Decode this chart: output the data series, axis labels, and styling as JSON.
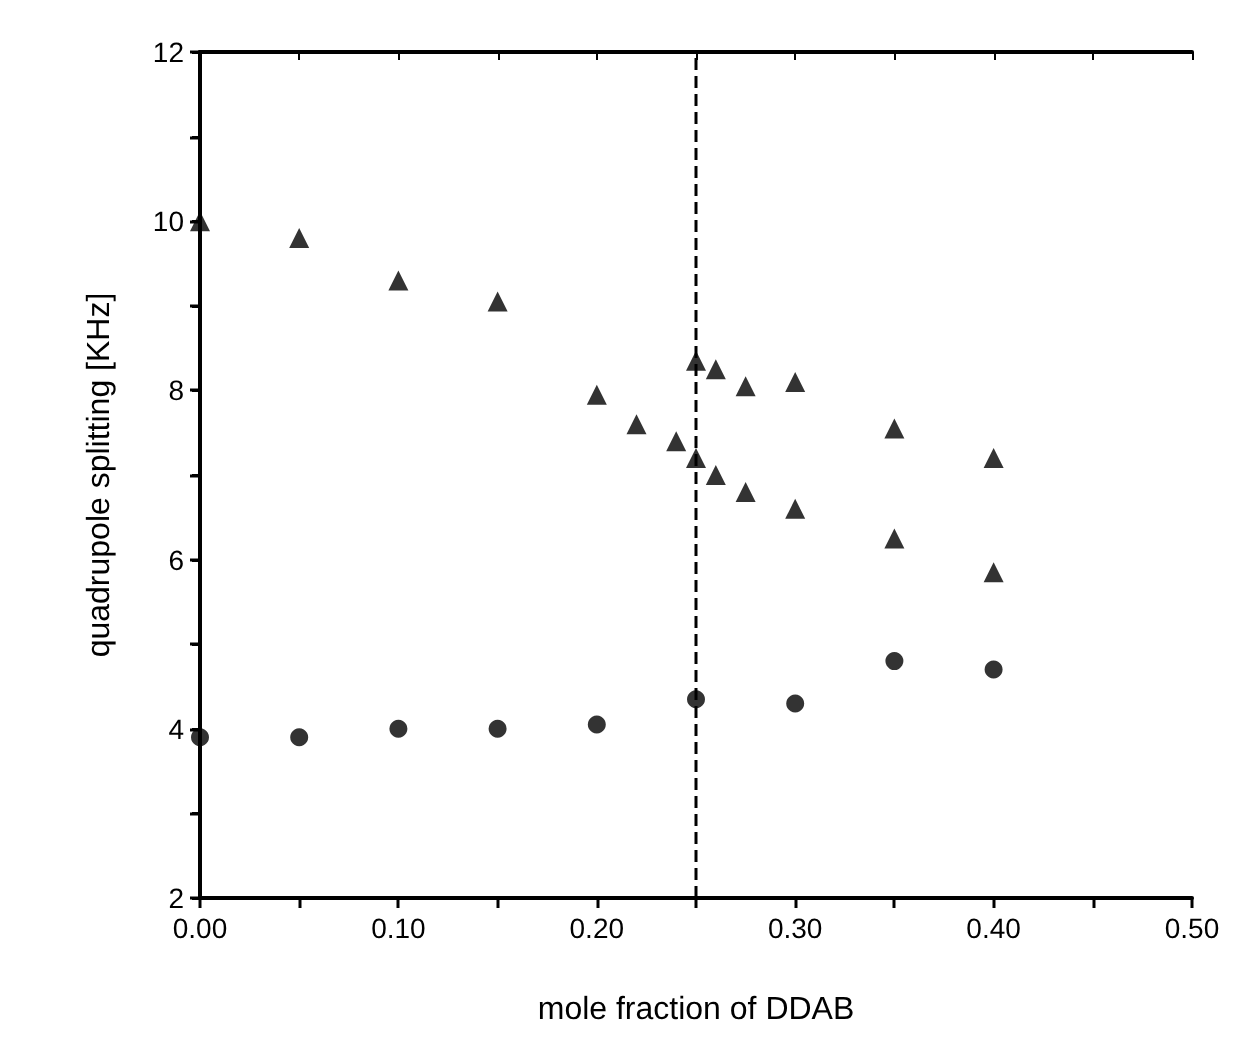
{
  "chart_data": {
    "type": "scatter",
    "xlabel": "mole fraction of DDAB",
    "ylabel": "quadrupole splitting [KHz]",
    "xlim": [
      0,
      0.5
    ],
    "ylim": [
      2,
      12
    ],
    "xticks": [
      {
        "value": 0,
        "label": "0.00"
      },
      {
        "value": 0.05,
        "label": null
      },
      {
        "value": 0.1,
        "label": "0.10"
      },
      {
        "value": 0.15,
        "label": null
      },
      {
        "value": 0.2,
        "label": "0.20"
      },
      {
        "value": 0.25,
        "label": null
      },
      {
        "value": 0.3,
        "label": "0.30"
      },
      {
        "value": 0.35,
        "label": null
      },
      {
        "value": 0.4,
        "label": "0.40"
      },
      {
        "value": 0.45,
        "label": null
      },
      {
        "value": 0.5,
        "label": "0.50"
      }
    ],
    "yticks": [
      2,
      {
        "value": 3,
        "label": null
      },
      4,
      {
        "value": 5,
        "label": null
      },
      6,
      {
        "value": 7,
        "label": null
      },
      8,
      {
        "value": 9,
        "label": null
      },
      10,
      {
        "value": 11,
        "label": null
      },
      12
    ],
    "grid": false,
    "series": [
      {
        "color": "#000000",
        "marker": "triangle",
        "x": [
          0,
          0.05,
          0.1,
          0.15,
          0.2,
          0.22,
          0.24,
          0.25,
          0.25,
          0.26,
          0.26,
          0.275,
          0.275,
          0.3,
          0.3,
          0.35,
          0.35,
          0.4,
          0.4
        ],
        "values": [
          10.0,
          9.8,
          9.3,
          9.05,
          7.95,
          7.6,
          7.4,
          7.2,
          8.35,
          8.25,
          7.0,
          8.05,
          6.8,
          8.1,
          6.6,
          7.55,
          6.25,
          7.2,
          5.85
        ]
      },
      {
        "color": "#000000",
        "marker": "circle",
        "x": [
          0,
          0.05,
          0.1,
          0.15,
          0.2,
          0.25,
          0.3,
          0.35,
          0.4
        ],
        "values": [
          3.9,
          3.9,
          4.0,
          4.0,
          4.05,
          4.35,
          4.3,
          4.8,
          4.7
        ]
      }
    ],
    "ref_lines": [
      {
        "axis": "x",
        "value": 0.25,
        "color": "#000000",
        "line_style": "dashed"
      }
    ]
  }
}
